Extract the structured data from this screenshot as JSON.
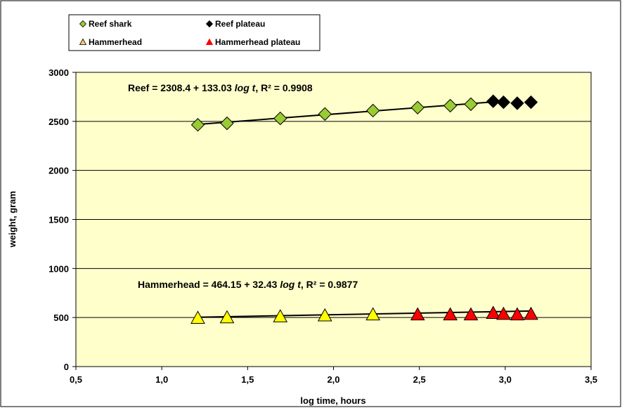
{
  "chart_data": {
    "type": "scatter",
    "xlabel": "log time, hours",
    "ylabel": "weight, gram",
    "xlim": [
      0.5,
      3.5
    ],
    "ylim": [
      0,
      3000
    ],
    "x_ticks": [
      "0,5",
      "1,0",
      "1,5",
      "2,0",
      "2,5",
      "3,0",
      "3,5"
    ],
    "x_tick_values": [
      0.5,
      1.0,
      1.5,
      2.0,
      2.5,
      3.0,
      3.5
    ],
    "y_ticks": [
      "0",
      "500",
      "1000",
      "1500",
      "2000",
      "2500",
      "3000"
    ],
    "y_tick_values": [
      0,
      500,
      1000,
      1500,
      2000,
      2500,
      3000
    ],
    "grid": "horizontal",
    "plot_background": "#ffffcc",
    "legend_placement": "top-left",
    "series": [
      {
        "name": "Reef shark",
        "marker": "diamond",
        "color": "#99cc33",
        "legend_color": "#99cc33",
        "x": [
          1.21,
          1.38,
          1.69,
          1.95,
          2.23,
          2.49,
          2.68,
          2.8
        ],
        "y": [
          2465,
          2480,
          2530,
          2575,
          2610,
          2640,
          2660,
          2675
        ]
      },
      {
        "name": "Reef plateau",
        "marker": "diamond",
        "color": "#000000",
        "legend_color": "#000000",
        "x": [
          2.93,
          2.99,
          3.07,
          3.15
        ],
        "y": [
          2705,
          2695,
          2685,
          2695
        ]
      },
      {
        "name": "Hammerhead",
        "marker": "triangle",
        "color": "#ffff00",
        "legend_color": "#ffcc66",
        "x": [
          1.21,
          1.38,
          1.69,
          1.95,
          2.23
        ],
        "y": [
          495,
          500,
          510,
          520,
          530
        ]
      },
      {
        "name": "Hammerhead plateau",
        "marker": "triangle",
        "color": "#ff0000",
        "legend_color": "#ff0000",
        "x": [
          2.49,
          2.68,
          2.8,
          2.93,
          2.99,
          3.07,
          3.15
        ],
        "y": [
          530,
          530,
          530,
          545,
          535,
          530,
          535
        ]
      }
    ],
    "trendlines": [
      {
        "name": "Reef",
        "intercept": 2308.4,
        "slope": 133.03,
        "x_range": [
          1.21,
          2.93
        ],
        "label": "Reef  = 2308.4 + 133.03 ",
        "label_log": "log t",
        "label_r2": ",  R² = 0.9908"
      },
      {
        "name": "Hammerhead",
        "intercept": 464.15,
        "slope": 32.43,
        "x_range": [
          1.21,
          3.15
        ],
        "label": "Hammerhead =  464.15 + 32.43 ",
        "label_log": "log t",
        "label_r2": ",  R² = 0.9877"
      }
    ]
  }
}
